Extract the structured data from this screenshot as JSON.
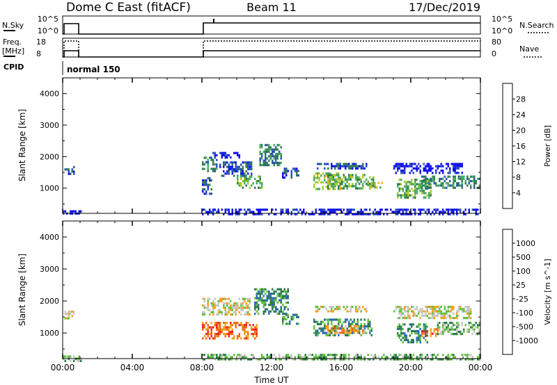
{
  "header": {
    "station": "Dome C East (fitACF)",
    "beam": "Beam 11",
    "date": "17/Dec/2019"
  },
  "strips": {
    "nsky": {
      "label": "N.Sky",
      "top_tick": "10^5",
      "bottom_tick": "10^0",
      "right_label": "N.Search",
      "right_top_tick": "10^5",
      "right_bottom_tick": "10^0"
    },
    "freq": {
      "label_line1": "Freq.",
      "label_line2": "[MHz]",
      "top_tick": "18",
      "bottom_tick": "8",
      "right_label": "Nave",
      "right_top_tick": "80",
      "right_bottom_tick": "0"
    },
    "cpid": {
      "label": "CPID",
      "mode": "normal 150"
    }
  },
  "chart_data": [
    {
      "type": "heatmap",
      "name": "power",
      "ylabel": "Slant Range [km]",
      "xlabel": "",
      "ylim": [
        200,
        4500
      ],
      "yticks": [
        1000,
        2000,
        3000,
        4000
      ],
      "xlim": [
        0,
        24
      ],
      "colorbar": {
        "label": "Power [dB]",
        "ticks": [
          "4",
          "8",
          "12",
          "16",
          "20",
          "24",
          "28"
        ],
        "colors": [
          "#1212ee",
          "#2a52b8",
          "#2e7d4f",
          "#4aa863",
          "#a8cc2a",
          "#f0b020",
          "#f07a18",
          "#ee2a10"
        ]
      },
      "patches": [
        {
          "t0": 0.1,
          "t1": 0.7,
          "r0": 1480,
          "r1": 1700,
          "level": 1
        },
        {
          "t0": 0.0,
          "t1": 1.1,
          "r0": 160,
          "r1": 300,
          "level": 0
        },
        {
          "t0": 8.0,
          "t1": 8.9,
          "r0": 1550,
          "r1": 2000,
          "level": 2
        },
        {
          "t0": 8.0,
          "t1": 8.6,
          "r0": 850,
          "r1": 1350,
          "level": 1
        },
        {
          "t0": 8.6,
          "t1": 10.2,
          "r0": 1950,
          "r1": 2150,
          "level": 0
        },
        {
          "t0": 9.0,
          "t1": 10.9,
          "r0": 1400,
          "r1": 1850,
          "level": 1
        },
        {
          "t0": 10.0,
          "t1": 11.5,
          "r0": 1000,
          "r1": 1400,
          "level": 3
        },
        {
          "t0": 11.3,
          "t1": 12.6,
          "r0": 1750,
          "r1": 2400,
          "level": 2
        },
        {
          "t0": 12.6,
          "t1": 13.6,
          "r0": 1350,
          "r1": 1650,
          "level": 1
        },
        {
          "t0": 14.4,
          "t1": 16.0,
          "r0": 950,
          "r1": 1500,
          "level": 4
        },
        {
          "t0": 15.2,
          "t1": 17.9,
          "r0": 1000,
          "r1": 1450,
          "level": 3
        },
        {
          "t0": 14.5,
          "t1": 17.5,
          "r0": 1600,
          "r1": 1800,
          "level": 1
        },
        {
          "t0": 17.5,
          "t1": 18.4,
          "r0": 1050,
          "r1": 1200,
          "level": 4
        },
        {
          "t0": 19.0,
          "t1": 23.0,
          "r0": 1500,
          "r1": 1800,
          "level": 0
        },
        {
          "t0": 19.2,
          "t1": 21.2,
          "r0": 700,
          "r1": 1300,
          "level": 3
        },
        {
          "t0": 20.5,
          "t1": 24.0,
          "r0": 1000,
          "r1": 1400,
          "level": 2
        },
        {
          "t0": 8.0,
          "t1": 24.0,
          "r0": 150,
          "r1": 350,
          "level": 0
        }
      ]
    },
    {
      "type": "heatmap",
      "name": "velocity",
      "ylabel": "Slant Range [km]",
      "xlabel": "Time UT",
      "ylim": [
        200,
        4500
      ],
      "yticks": [
        1000,
        2000,
        3000,
        4000
      ],
      "xlim": [
        0,
        24
      ],
      "xticks": [
        "00:00",
        "04:00",
        "08:00",
        "12:00",
        "16:00",
        "20:00",
        "00:00"
      ],
      "colorbar": {
        "label": "Velocity [m s^-1]",
        "ticks": [
          "1000",
          "500",
          "100",
          "25",
          "-25",
          "-100",
          "-500",
          "-1000"
        ],
        "colors": [
          "#1a3cd0",
          "#2b6ab8",
          "#2e7a50",
          "#60c040",
          "#c8c8c0",
          "#f5a020",
          "#f06a10",
          "#ee2020",
          "#e01818"
        ]
      },
      "patches": [
        {
          "t0": 0.1,
          "t1": 0.7,
          "r0": 1480,
          "r1": 1700,
          "level": 4
        },
        {
          "t0": 0.0,
          "t1": 1.1,
          "r0": 160,
          "r1": 300,
          "level": 3
        },
        {
          "t0": 8.0,
          "t1": 10.8,
          "r0": 1600,
          "r1": 2100,
          "level": 4
        },
        {
          "t0": 8.0,
          "t1": 11.2,
          "r0": 800,
          "r1": 1350,
          "level": 6
        },
        {
          "t0": 11.0,
          "t1": 13.0,
          "r0": 1600,
          "r1": 2400,
          "level": 2
        },
        {
          "t0": 12.6,
          "t1": 13.6,
          "r0": 1300,
          "r1": 1600,
          "level": 2
        },
        {
          "t0": 14.4,
          "t1": 17.8,
          "r0": 900,
          "r1": 1450,
          "level": 2
        },
        {
          "t0": 15.0,
          "t1": 17.4,
          "r0": 1000,
          "r1": 1250,
          "level": 5
        },
        {
          "t0": 14.5,
          "t1": 17.5,
          "r0": 1650,
          "r1": 1850,
          "level": 4
        },
        {
          "t0": 19.0,
          "t1": 23.5,
          "r0": 1500,
          "r1": 1850,
          "level": 4
        },
        {
          "t0": 19.2,
          "t1": 21.0,
          "r0": 700,
          "r1": 1300,
          "level": 2
        },
        {
          "t0": 20.6,
          "t1": 21.6,
          "r0": 900,
          "r1": 1150,
          "level": 6
        },
        {
          "t0": 21.5,
          "t1": 24.0,
          "r0": 1000,
          "r1": 1350,
          "level": 3
        },
        {
          "t0": 8.0,
          "t1": 24.0,
          "r0": 150,
          "r1": 350,
          "level": 3
        }
      ]
    }
  ]
}
